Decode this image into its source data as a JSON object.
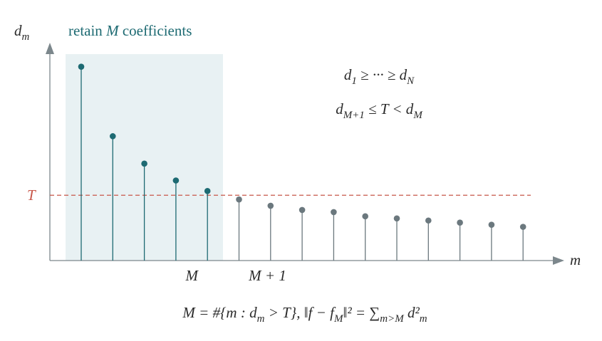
{
  "chart_data": {
    "type": "stem",
    "y_label": "d",
    "y_label_sub": "m",
    "region_label": [
      "retain ",
      "M",
      " coefficients"
    ],
    "x_label": "m",
    "threshold_label": "T",
    "threshold": 0.31,
    "threshold_color": "#c8574a",
    "ylim": [
      0,
      1
    ],
    "categories": [
      null,
      null,
      null,
      null,
      "M",
      "M + 1",
      null,
      null,
      null,
      null,
      null,
      null,
      null,
      null,
      null
    ],
    "retained": {
      "color": "#1d6a72",
      "values": [
        0.92,
        0.59,
        0.46,
        0.38,
        0.33
      ]
    },
    "dropped": {
      "color": "#6b787e",
      "values": [
        0.29,
        0.26,
        0.24,
        0.23,
        0.21,
        0.2,
        0.19,
        0.18,
        0.17,
        0.16
      ]
    },
    "annotations": [
      [
        "d",
        "1",
        " ≥ ··· ≥ d",
        "N"
      ],
      [
        "d",
        "M+1",
        " ≤ T < d",
        "M"
      ]
    ],
    "formula": [
      "M = #{m : d",
      "m",
      " > T},        ‖f − f",
      "M",
      "‖² = ∑",
      "m>M",
      " d²",
      "m"
    ]
  }
}
